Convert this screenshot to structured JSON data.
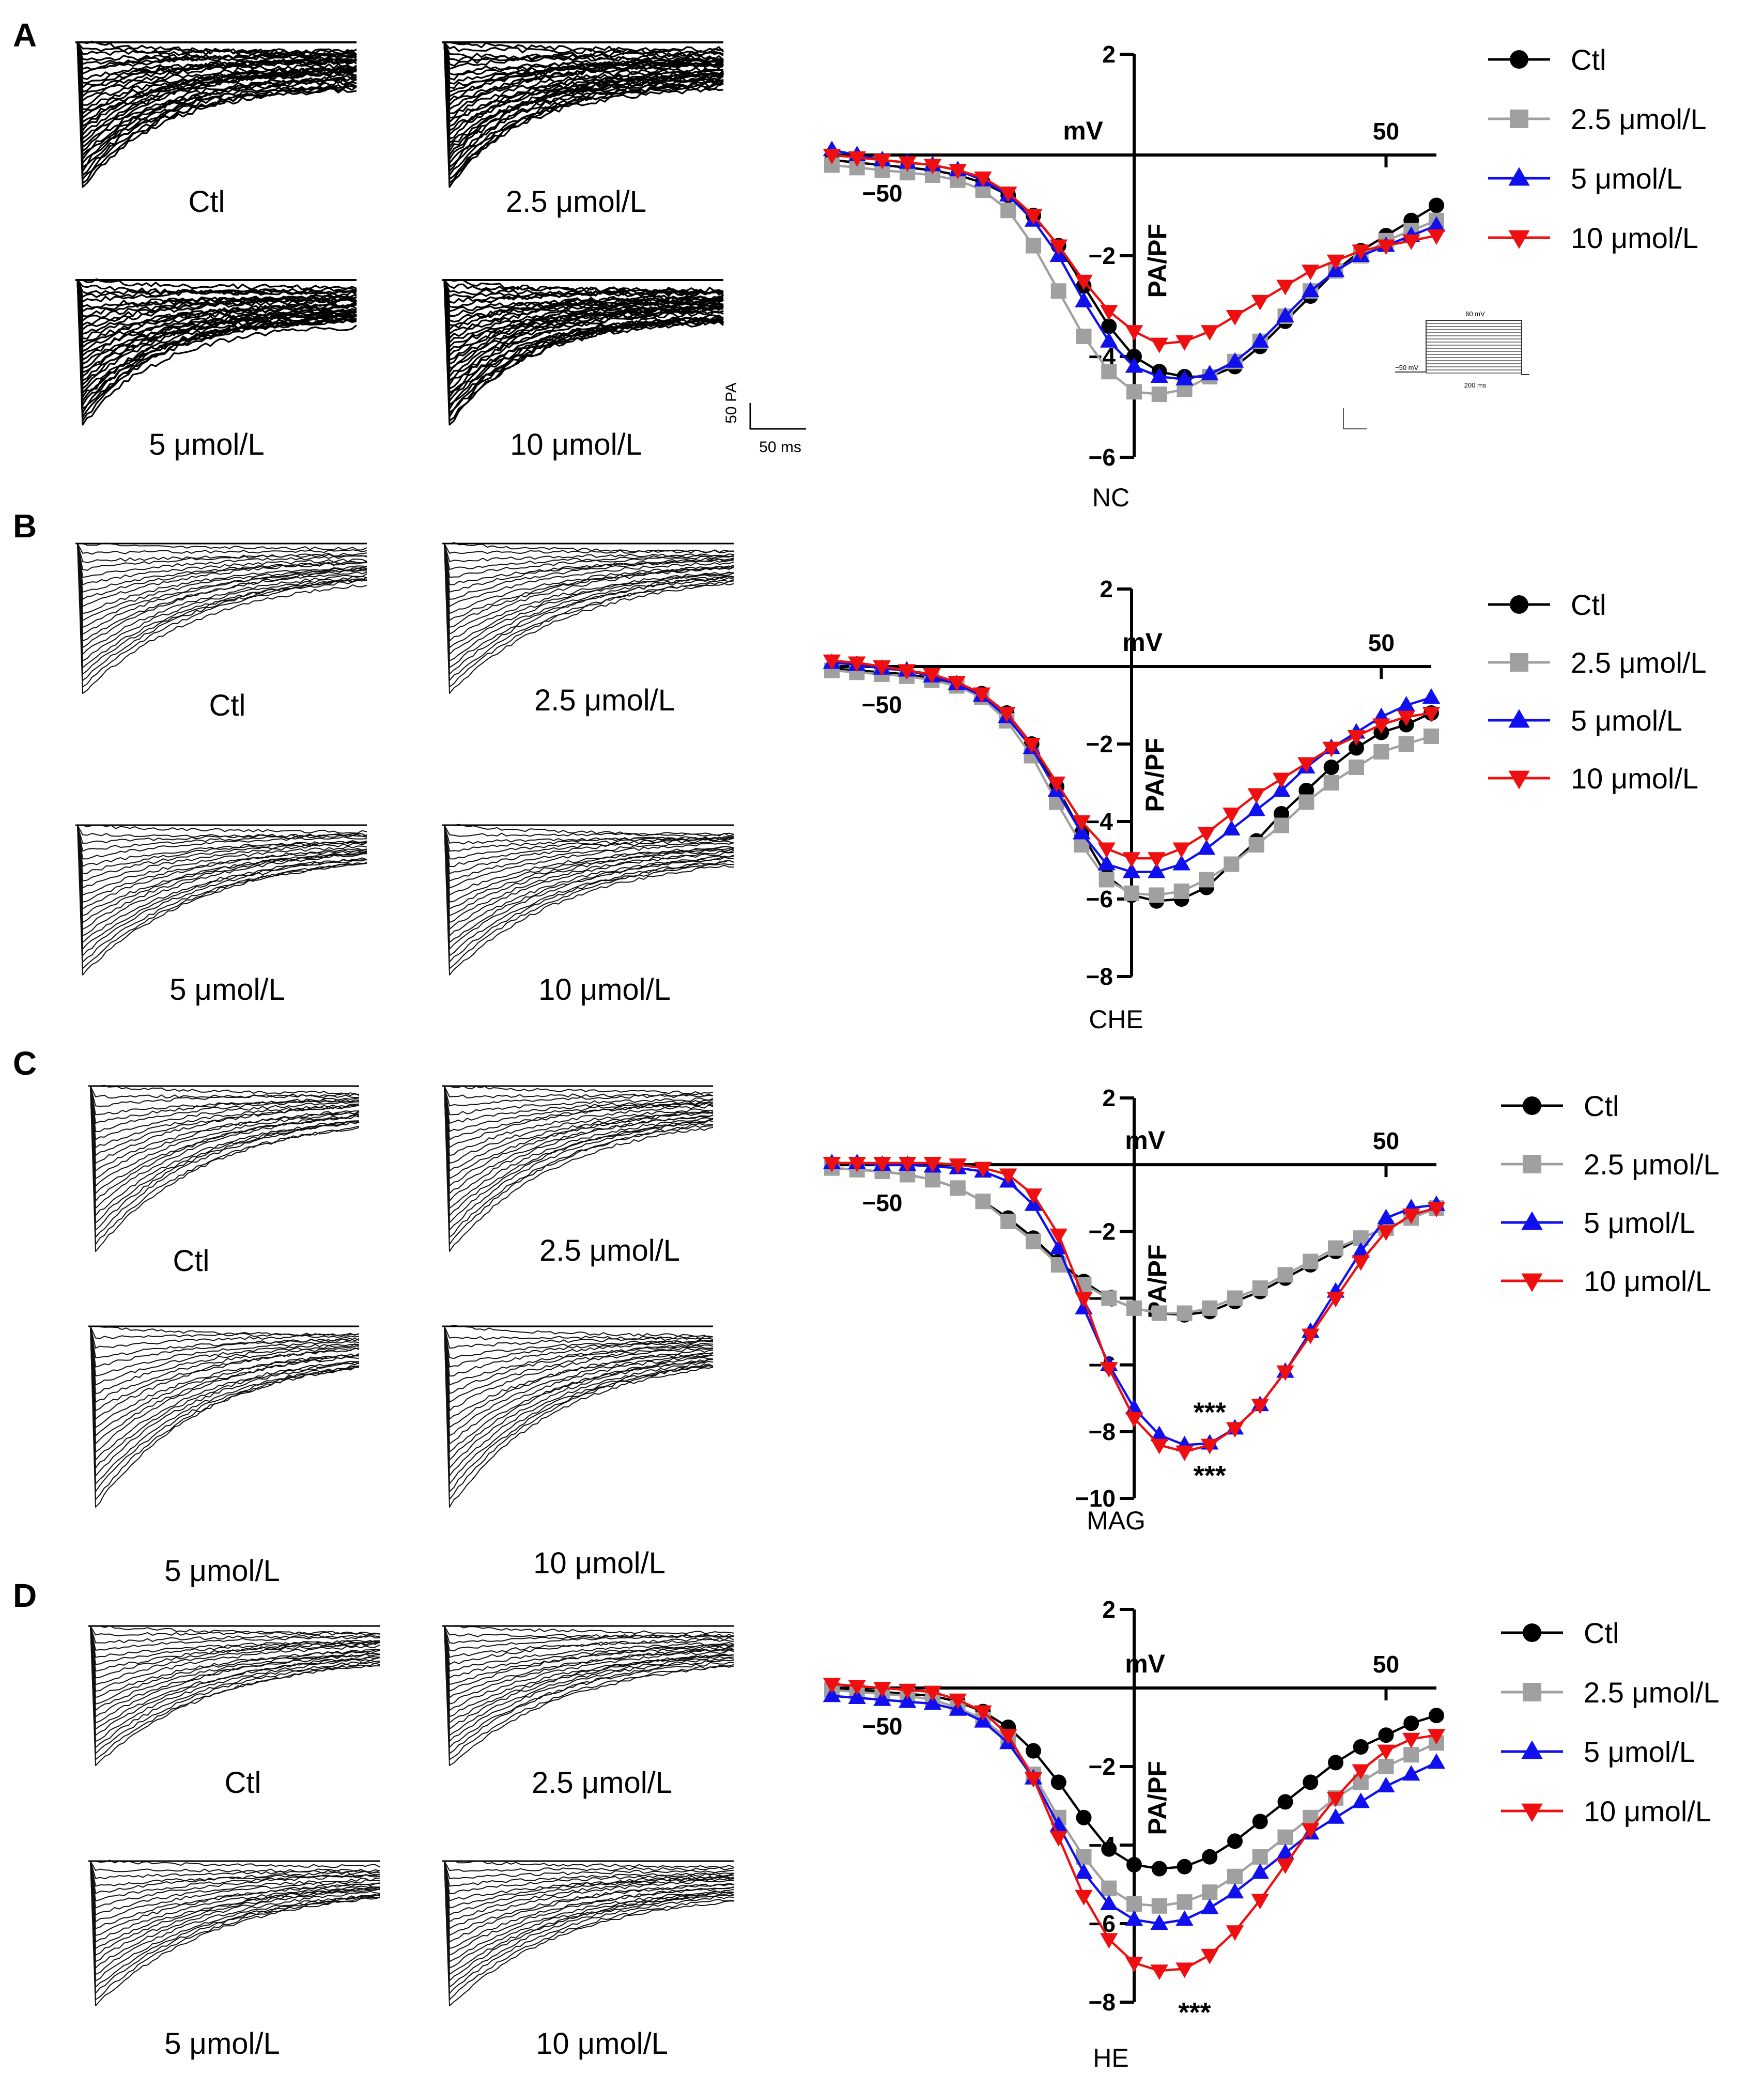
{
  "figure": {
    "panels": [
      {
        "letter": "A",
        "condition": "NC",
        "trace_labels": [
          "Ctl",
          "2.5 μmol/L",
          "5 μmol/L",
          "10 μmol/L"
        ],
        "scale_bar": {
          "y_label": "50 PA",
          "x_label": "50 ms"
        },
        "inset": {
          "top_label": "60 mV",
          "left_label": "−50 mV",
          "bottom_label": "200 ms"
        }
      },
      {
        "letter": "B",
        "condition": "CHE",
        "trace_labels": [
          "Ctl",
          "2.5 μmol/L",
          "5 μmol/L",
          "10 μmol/L"
        ]
      },
      {
        "letter": "C",
        "condition": "MAG",
        "trace_labels": [
          "Ctl",
          "2.5 μmol/L",
          "5 μmol/L",
          "10 μmol/L"
        ]
      },
      {
        "letter": "D",
        "condition": "HE",
        "trace_labels": [
          "Ctl",
          "2.5 μmol/L",
          "5 μmol/L",
          "10 μmol/L"
        ]
      }
    ]
  },
  "series_styles": [
    {
      "name": "Ctl",
      "color": "#000000",
      "marker": "circle"
    },
    {
      "name": "2.5 μmol/L",
      "color": "#a0a0a0",
      "marker": "square"
    },
    {
      "name": "5 μmol/L",
      "color": "#1010ee",
      "marker": "triangle-up"
    },
    {
      "name": "10 μmol/L",
      "color": "#ee1010",
      "marker": "triangle-down"
    }
  ],
  "chart_data": [
    {
      "type": "line",
      "panel": "A",
      "xlabel": "mV",
      "ylabel": "PA/PF",
      "x_ticks": [
        -50,
        50
      ],
      "y_ticks": [
        2,
        -2,
        -4,
        -6
      ],
      "xlim": [
        -60,
        60
      ],
      "ylim": [
        -6,
        2
      ],
      "annotations": [],
      "x": [
        -60,
        -55,
        -50,
        -45,
        -40,
        -35,
        -30,
        -25,
        -20,
        -15,
        -10,
        -5,
        0,
        5,
        10,
        15,
        20,
        25,
        30,
        35,
        40,
        45,
        50,
        55,
        60
      ],
      "series": [
        {
          "name": "Ctl",
          "values": [
            -0.1,
            -0.15,
            -0.2,
            -0.25,
            -0.3,
            -0.4,
            -0.55,
            -0.8,
            -1.2,
            -1.8,
            -2.6,
            -3.4,
            -4.0,
            -4.3,
            -4.4,
            -4.4,
            -4.2,
            -3.8,
            -3.3,
            -2.8,
            -2.3,
            -1.9,
            -1.6,
            -1.3,
            -1.0
          ]
        },
        {
          "name": "2.5 μmol/L",
          "values": [
            -0.2,
            -0.25,
            -0.3,
            -0.35,
            -0.4,
            -0.5,
            -0.7,
            -1.1,
            -1.8,
            -2.7,
            -3.6,
            -4.3,
            -4.7,
            -4.75,
            -4.65,
            -4.4,
            -4.1,
            -3.7,
            -3.2,
            -2.7,
            -2.3,
            -2.0,
            -1.7,
            -1.5,
            -1.3
          ]
        },
        {
          "name": "5 μmol/L",
          "values": [
            0.1,
            0.0,
            -0.1,
            -0.15,
            -0.2,
            -0.3,
            -0.5,
            -0.8,
            -1.3,
            -2.0,
            -2.9,
            -3.7,
            -4.2,
            -4.4,
            -4.45,
            -4.35,
            -4.1,
            -3.7,
            -3.2,
            -2.7,
            -2.3,
            -2.0,
            -1.8,
            -1.6,
            -1.4
          ]
        },
        {
          "name": "10 μmol/L",
          "values": [
            0.0,
            -0.05,
            -0.1,
            -0.15,
            -0.2,
            -0.3,
            -0.45,
            -0.75,
            -1.2,
            -1.8,
            -2.5,
            -3.1,
            -3.5,
            -3.75,
            -3.7,
            -3.5,
            -3.2,
            -2.9,
            -2.6,
            -2.3,
            -2.1,
            -1.9,
            -1.8,
            -1.7,
            -1.6
          ]
        }
      ]
    },
    {
      "type": "line",
      "panel": "B",
      "xlabel": "mV",
      "ylabel": "PA/PF",
      "x_ticks": [
        -50,
        50
      ],
      "y_ticks": [
        2,
        -2,
        -4,
        -6,
        -8
      ],
      "xlim": [
        -60,
        60
      ],
      "ylim": [
        -8,
        2
      ],
      "annotations": [],
      "x": [
        -60,
        -55,
        -50,
        -45,
        -40,
        -35,
        -30,
        -25,
        -20,
        -15,
        -10,
        -5,
        0,
        5,
        10,
        15,
        20,
        25,
        30,
        35,
        40,
        45,
        50,
        55,
        60
      ],
      "series": [
        {
          "name": "Ctl",
          "values": [
            -0.05,
            -0.1,
            -0.15,
            -0.2,
            -0.3,
            -0.45,
            -0.7,
            -1.2,
            -2.0,
            -3.1,
            -4.3,
            -5.4,
            -5.9,
            -6.05,
            -6.0,
            -5.7,
            -5.1,
            -4.5,
            -3.8,
            -3.2,
            -2.6,
            -2.1,
            -1.7,
            -1.5,
            -1.2
          ]
        },
        {
          "name": "2.5 μmol/L",
          "values": [
            -0.1,
            -0.15,
            -0.2,
            -0.25,
            -0.35,
            -0.5,
            -0.8,
            -1.4,
            -2.3,
            -3.5,
            -4.6,
            -5.5,
            -5.85,
            -5.9,
            -5.8,
            -5.5,
            -5.1,
            -4.6,
            -4.1,
            -3.5,
            -3.0,
            -2.6,
            -2.2,
            -2.0,
            -1.8
          ]
        },
        {
          "name": "5 μmol/L",
          "values": [
            0.1,
            0.05,
            -0.05,
            -0.1,
            -0.25,
            -0.45,
            -0.75,
            -1.3,
            -2.1,
            -3.2,
            -4.3,
            -5.1,
            -5.3,
            -5.3,
            -5.1,
            -4.7,
            -4.2,
            -3.7,
            -3.2,
            -2.6,
            -2.1,
            -1.7,
            -1.3,
            -1.0,
            -0.8
          ]
        },
        {
          "name": "10 μmol/L",
          "values": [
            0.15,
            0.1,
            0.0,
            -0.1,
            -0.2,
            -0.4,
            -0.7,
            -1.2,
            -2.0,
            -3.0,
            -4.0,
            -4.7,
            -4.95,
            -4.95,
            -4.7,
            -4.3,
            -3.8,
            -3.3,
            -2.9,
            -2.5,
            -2.1,
            -1.8,
            -1.5,
            -1.3,
            -1.2
          ]
        }
      ]
    },
    {
      "type": "line",
      "panel": "C",
      "xlabel": "mV",
      "ylabel": "PA/PF",
      "x_ticks": [
        -50,
        50
      ],
      "y_ticks": [
        2,
        -2,
        -4,
        -6,
        -8,
        -10
      ],
      "xlim": [
        -60,
        60
      ],
      "ylim": [
        -10,
        2
      ],
      "annotations": [
        {
          "text": "***",
          "x": 15,
          "y": -7.7
        },
        {
          "text": "***",
          "x": 15,
          "y": -9.6
        }
      ],
      "x": [
        -60,
        -55,
        -50,
        -45,
        -40,
        -35,
        -30,
        -25,
        -20,
        -15,
        -10,
        -5,
        0,
        5,
        10,
        15,
        20,
        25,
        30,
        35,
        40,
        45,
        50,
        55,
        60
      ],
      "series": [
        {
          "name": "Ctl",
          "values": [
            -0.1,
            -0.15,
            -0.2,
            -0.3,
            -0.45,
            -0.7,
            -1.1,
            -1.6,
            -2.2,
            -2.9,
            -3.5,
            -4.0,
            -4.3,
            -4.45,
            -4.5,
            -4.4,
            -4.1,
            -3.8,
            -3.4,
            -3.0,
            -2.6,
            -2.2,
            -1.9,
            -1.6,
            -1.3
          ]
        },
        {
          "name": "2.5 μmol/L",
          "values": [
            -0.1,
            -0.15,
            -0.2,
            -0.3,
            -0.45,
            -0.7,
            -1.1,
            -1.7,
            -2.3,
            -3.0,
            -3.6,
            -4.0,
            -4.3,
            -4.45,
            -4.45,
            -4.3,
            -4.0,
            -3.7,
            -3.3,
            -2.9,
            -2.5,
            -2.2,
            -1.9,
            -1.6,
            -1.3
          ]
        },
        {
          "name": "5 μmol/L",
          "values": [
            0.05,
            0.05,
            0.0,
            0.0,
            -0.05,
            -0.1,
            -0.2,
            -0.5,
            -1.2,
            -2.5,
            -4.3,
            -6.0,
            -7.3,
            -8.1,
            -8.4,
            -8.35,
            -7.9,
            -7.2,
            -6.2,
            -5.0,
            -3.8,
            -2.6,
            -1.6,
            -1.3,
            -1.2
          ]
        },
        {
          "name": "10 μmol/L",
          "values": [
            0.05,
            0.05,
            0.05,
            0.05,
            0.05,
            0.0,
            -0.1,
            -0.3,
            -0.9,
            -2.1,
            -4.0,
            -6.1,
            -7.6,
            -8.4,
            -8.6,
            -8.4,
            -7.9,
            -7.2,
            -6.2,
            -5.1,
            -4.0,
            -2.9,
            -2.0,
            -1.5,
            -1.3
          ]
        }
      ]
    },
    {
      "type": "line",
      "panel": "D",
      "xlabel": "mV",
      "ylabel": "PA/PF",
      "x_ticks": [
        -50,
        50
      ],
      "y_ticks": [
        2,
        -2,
        -4,
        -6,
        -8
      ],
      "xlim": [
        -60,
        60
      ],
      "ylim": [
        -8,
        2
      ],
      "annotations": [
        {
          "text": "***",
          "x": 12,
          "y": -8.5
        }
      ],
      "x": [
        -60,
        -55,
        -50,
        -45,
        -40,
        -35,
        -30,
        -25,
        -20,
        -15,
        -10,
        -5,
        0,
        5,
        10,
        15,
        20,
        25,
        30,
        35,
        40,
        45,
        50,
        55,
        60
      ],
      "series": [
        {
          "name": "Ctl",
          "values": [
            -0.05,
            -0.05,
            -0.1,
            -0.15,
            -0.2,
            -0.35,
            -0.6,
            -1.0,
            -1.6,
            -2.4,
            -3.3,
            -4.1,
            -4.5,
            -4.6,
            -4.55,
            -4.3,
            -3.9,
            -3.4,
            -2.9,
            -2.4,
            -1.9,
            -1.5,
            -1.2,
            -0.9,
            -0.7
          ]
        },
        {
          "name": "2.5 μmol/L",
          "values": [
            -0.05,
            -0.1,
            -0.15,
            -0.2,
            -0.3,
            -0.5,
            -0.8,
            -1.3,
            -2.2,
            -3.3,
            -4.3,
            -5.1,
            -5.5,
            -5.55,
            -5.45,
            -5.2,
            -4.8,
            -4.3,
            -3.8,
            -3.3,
            -2.8,
            -2.4,
            -2.0,
            -1.7,
            -1.4
          ]
        },
        {
          "name": "5 μmol/L",
          "values": [
            -0.2,
            -0.25,
            -0.3,
            -0.35,
            -0.4,
            -0.55,
            -0.85,
            -1.4,
            -2.3,
            -3.5,
            -4.7,
            -5.5,
            -5.9,
            -6.0,
            -5.9,
            -5.6,
            -5.2,
            -4.7,
            -4.2,
            -3.7,
            -3.3,
            -2.9,
            -2.5,
            -2.2,
            -1.9
          ]
        },
        {
          "name": "10 μmol/L",
          "values": [
            0.1,
            0.05,
            0.0,
            -0.05,
            -0.1,
            -0.3,
            -0.6,
            -1.2,
            -2.3,
            -3.8,
            -5.3,
            -6.4,
            -7.0,
            -7.2,
            -7.15,
            -6.8,
            -6.2,
            -5.4,
            -4.5,
            -3.6,
            -2.8,
            -2.1,
            -1.6,
            -1.3,
            -1.2
          ]
        }
      ]
    }
  ]
}
